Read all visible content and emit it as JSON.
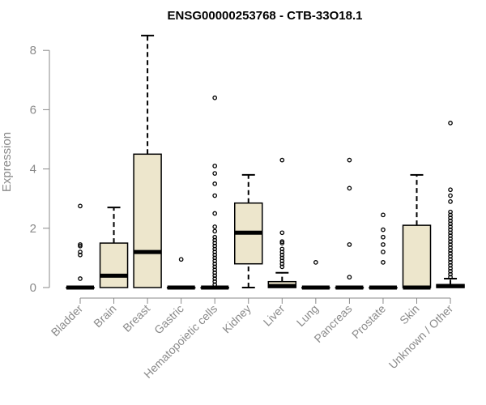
{
  "chart_data": {
    "type": "box",
    "title": "ENSG00000253768 - CTB-33O18.1",
    "xlabel": "",
    "ylabel": "Expression",
    "ylim": [
      0,
      8.5
    ],
    "yticks": [
      0,
      2,
      4,
      6,
      8
    ],
    "grid": false,
    "colors": {
      "box_fill": "#ede6cc",
      "box_stroke": "#000000",
      "axis": "#8a8a8a",
      "tick_text": "#8a8a8a",
      "title": "#000000"
    },
    "categories": [
      "Bladder",
      "Brain",
      "Breast",
      "Gastric",
      "Hematopoietic cells",
      "Kidney",
      "Liver",
      "Lung",
      "Pancreas",
      "Prostate",
      "Skin",
      "Unknown / Other"
    ],
    "boxes": [
      {
        "category": "Bladder",
        "min": 0,
        "q1": 0,
        "median": 0,
        "q3": 0,
        "max": 0,
        "outliers": [
          0.3,
          1.1,
          1.2,
          1.4,
          1.45,
          2.75
        ]
      },
      {
        "category": "Brain",
        "min": 0,
        "q1": 0,
        "median": 0.4,
        "q3": 1.5,
        "max": 2.7,
        "outliers": []
      },
      {
        "category": "Breast",
        "min": 0,
        "q1": 0,
        "median": 1.2,
        "q3": 4.5,
        "max": 8.5,
        "outliers": []
      },
      {
        "category": "Gastric",
        "min": 0,
        "q1": 0,
        "median": 0,
        "q3": 0,
        "max": 0,
        "outliers": [
          0.95
        ]
      },
      {
        "category": "Hematopoietic cells",
        "min": 0,
        "q1": 0,
        "median": 0,
        "q3": 0,
        "max": 0,
        "outliers": [
          0.1,
          0.2,
          0.3,
          0.4,
          0.5,
          0.6,
          0.7,
          0.8,
          0.9,
          1.0,
          1.1,
          1.2,
          1.3,
          1.4,
          1.5,
          1.6,
          1.7,
          1.9,
          2.05,
          2.5,
          3.1,
          3.5,
          3.85,
          4.1,
          6.4
        ]
      },
      {
        "category": "Kidney",
        "min": 0,
        "q1": 0.8,
        "median": 1.85,
        "q3": 2.85,
        "max": 3.8,
        "outliers": []
      },
      {
        "category": "Liver",
        "min": 0,
        "q1": 0,
        "median": 0.05,
        "q3": 0.2,
        "max": 0.5,
        "outliers": [
          0.7,
          0.8,
          0.9,
          1.0,
          1.1,
          1.2,
          1.3,
          1.5,
          1.55,
          1.85,
          4.3
        ]
      },
      {
        "category": "Lung",
        "min": 0,
        "q1": 0,
        "median": 0,
        "q3": 0,
        "max": 0,
        "outliers": [
          0.85
        ]
      },
      {
        "category": "Pancreas",
        "min": 0,
        "q1": 0,
        "median": 0,
        "q3": 0,
        "max": 0,
        "outliers": [
          0.35,
          1.45,
          3.35,
          4.3
        ]
      },
      {
        "category": "Prostate",
        "min": 0,
        "q1": 0,
        "median": 0,
        "q3": 0,
        "max": 0,
        "outliers": [
          0.85,
          1.2,
          1.45,
          1.7,
          1.95,
          2.45
        ]
      },
      {
        "category": "Skin",
        "min": 0,
        "q1": 0,
        "median": 0,
        "q3": 2.1,
        "max": 3.8,
        "outliers": []
      },
      {
        "category": "Unknown / Other",
        "min": 0,
        "q1": 0,
        "median": 0.05,
        "q3": 0.1,
        "max": 0.3,
        "outliers": [
          0.35,
          0.45,
          0.55,
          0.65,
          0.75,
          0.85,
          0.95,
          1.05,
          1.15,
          1.25,
          1.35,
          1.45,
          1.55,
          1.65,
          1.75,
          1.85,
          1.95,
          2.05,
          2.15,
          2.25,
          2.35,
          2.45,
          2.55,
          2.9,
          3.1,
          3.3,
          5.55
        ]
      }
    ]
  }
}
